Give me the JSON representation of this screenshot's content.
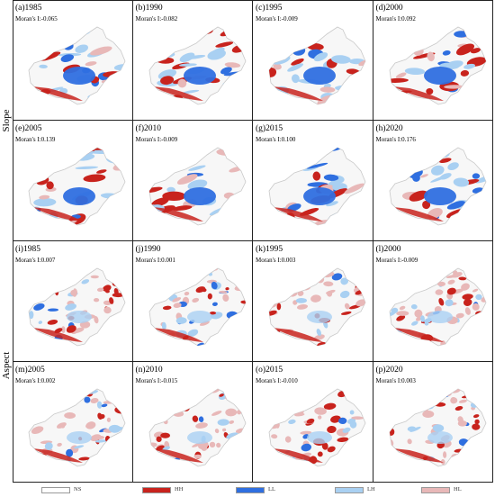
{
  "row_labels": [
    "Slope",
    "Aspect"
  ],
  "colors": {
    "NS": "#ffffff",
    "HH": "#c8231d",
    "LL": "#2f6fe0",
    "LH": "#a9d0f2",
    "HL": "#e8b8b8"
  },
  "panels": [
    {
      "title": "(a)1985",
      "moran": "Moran's I:-0.065",
      "group": "slope"
    },
    {
      "title": "(b)1990",
      "moran": "Moran's I:-0.082",
      "group": "slope"
    },
    {
      "title": "(c)1995",
      "moran": "Moran's I:-0.009",
      "group": "slope"
    },
    {
      "title": "(d)2000",
      "moran": "Moran's I:0.092",
      "group": "slope"
    },
    {
      "title": "(e)2005",
      "moran": "Moran's I:0.139",
      "group": "slope"
    },
    {
      "title": "(f)2010",
      "moran": "Moran's I:-0.009",
      "group": "slope"
    },
    {
      "title": "(g)2015",
      "moran": "Moran's I:0.100",
      "group": "slope"
    },
    {
      "title": "(h)2020",
      "moran": "Moran's I:0.176",
      "group": "slope"
    },
    {
      "title": "(i)1985",
      "moran": "Moran's I:0.007",
      "group": "aspect"
    },
    {
      "title": "(j)1990",
      "moran": "Moran's I:0.001",
      "group": "aspect"
    },
    {
      "title": "(k)1995",
      "moran": "Moran's I:0.003",
      "group": "aspect"
    },
    {
      "title": "(l)2000",
      "moran": "Moran's I:-0.009",
      "group": "aspect"
    },
    {
      "title": "(m)2005",
      "moran": "Moran's I:0.002",
      "group": "aspect"
    },
    {
      "title": "(n)2010",
      "moran": "Moran's I:-0.015",
      "group": "aspect"
    },
    {
      "title": "(o)2015",
      "moran": "Moran's I:-0.010",
      "group": "aspect"
    },
    {
      "title": "(p)2020",
      "moran": "Moran's I:0.003",
      "group": "aspect"
    }
  ],
  "legend": [
    {
      "label": "NS",
      "color": "#ffffff"
    },
    {
      "label": "HH",
      "color": "#c8231d"
    },
    {
      "label": "LL",
      "color": "#2f6fe0"
    },
    {
      "label": "LH",
      "color": "#a9d0f2"
    },
    {
      "label": "HL",
      "color": "#e8b8b8"
    }
  ]
}
